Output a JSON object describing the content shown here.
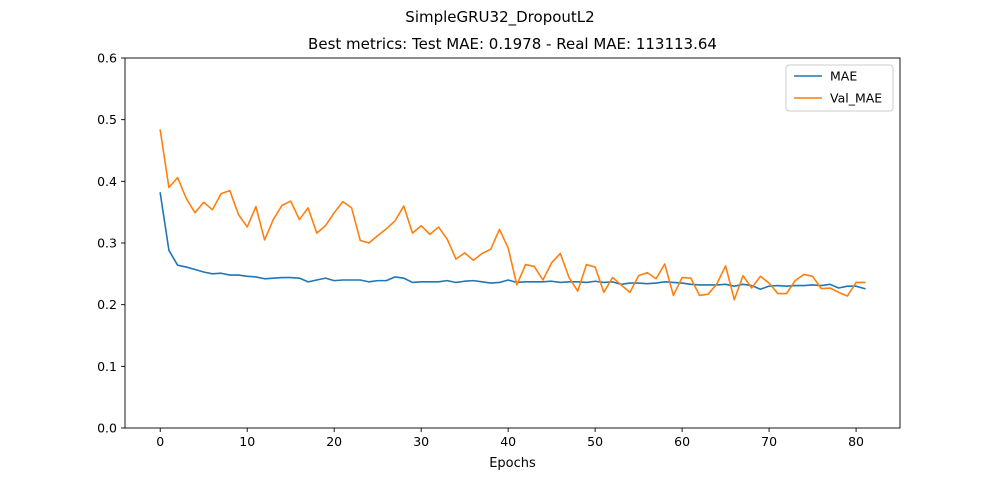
{
  "figure": {
    "suptitle": "SimpleGRU32_DropoutL2"
  },
  "chart_data": {
    "type": "line",
    "title": "Best metrics: Test MAE: 0.1978 - Real MAE: 113113.64",
    "xlabel": "Epochs",
    "ylabel": "",
    "xlim": [
      -4.05,
      85.05
    ],
    "ylim": [
      0,
      0.6
    ],
    "xticks": [
      0,
      10,
      20,
      30,
      40,
      50,
      60,
      70,
      80
    ],
    "yticks": [
      0.0,
      0.1,
      0.2,
      0.3,
      0.4,
      0.5,
      0.6
    ],
    "ytick_labels": [
      "0.0",
      "0.1",
      "0.2",
      "0.3",
      "0.4",
      "0.5",
      "0.6"
    ],
    "grid": false,
    "legend_position": "top-right",
    "x": [
      0,
      1,
      2,
      3,
      4,
      5,
      6,
      7,
      8,
      9,
      10,
      11,
      12,
      13,
      14,
      15,
      16,
      17,
      18,
      19,
      20,
      21,
      22,
      23,
      24,
      25,
      26,
      27,
      28,
      29,
      30,
      31,
      32,
      33,
      34,
      35,
      36,
      37,
      38,
      39,
      40,
      41,
      42,
      43,
      44,
      45,
      46,
      47,
      48,
      49,
      50,
      51,
      52,
      53,
      54,
      55,
      56,
      57,
      58,
      59,
      60,
      61,
      62,
      63,
      64,
      65,
      66,
      67,
      68,
      69,
      70,
      71,
      72,
      73,
      74,
      75,
      76,
      77,
      78,
      79,
      80,
      81
    ],
    "series": [
      {
        "name": "MAE",
        "color": "#1f77b4",
        "values": [
          0.381,
          0.288,
          0.264,
          0.261,
          0.257,
          0.253,
          0.25,
          0.251,
          0.248,
          0.248,
          0.246,
          0.245,
          0.242,
          0.243,
          0.244,
          0.244,
          0.243,
          0.237,
          0.24,
          0.243,
          0.239,
          0.24,
          0.24,
          0.24,
          0.237,
          0.239,
          0.239,
          0.245,
          0.243,
          0.236,
          0.237,
          0.237,
          0.237,
          0.239,
          0.236,
          0.238,
          0.239,
          0.237,
          0.235,
          0.236,
          0.24,
          0.236,
          0.237,
          0.237,
          0.237,
          0.238,
          0.236,
          0.237,
          0.237,
          0.236,
          0.238,
          0.236,
          0.237,
          0.233,
          0.235,
          0.235,
          0.234,
          0.235,
          0.237,
          0.236,
          0.235,
          0.233,
          0.232,
          0.232,
          0.232,
          0.233,
          0.23,
          0.233,
          0.231,
          0.225,
          0.23,
          0.231,
          0.23,
          0.231,
          0.231,
          0.232,
          0.231,
          0.233,
          0.227,
          0.23,
          0.23,
          0.226
        ]
      },
      {
        "name": "Val_MAE",
        "color": "#ff7f0e",
        "values": [
          0.483,
          0.39,
          0.406,
          0.372,
          0.349,
          0.366,
          0.354,
          0.38,
          0.385,
          0.346,
          0.326,
          0.359,
          0.305,
          0.338,
          0.361,
          0.368,
          0.338,
          0.357,
          0.316,
          0.328,
          0.349,
          0.367,
          0.357,
          0.304,
          0.3,
          0.312,
          0.323,
          0.336,
          0.36,
          0.316,
          0.328,
          0.314,
          0.326,
          0.306,
          0.274,
          0.284,
          0.272,
          0.283,
          0.29,
          0.322,
          0.292,
          0.232,
          0.265,
          0.262,
          0.24,
          0.268,
          0.283,
          0.244,
          0.222,
          0.265,
          0.261,
          0.22,
          0.244,
          0.232,
          0.22,
          0.247,
          0.252,
          0.242,
          0.266,
          0.215,
          0.244,
          0.243,
          0.215,
          0.217,
          0.234,
          0.263,
          0.208,
          0.247,
          0.227,
          0.246,
          0.235,
          0.218,
          0.218,
          0.239,
          0.249,
          0.246,
          0.226,
          0.227,
          0.22,
          0.214,
          0.236,
          0.236
        ]
      }
    ]
  }
}
